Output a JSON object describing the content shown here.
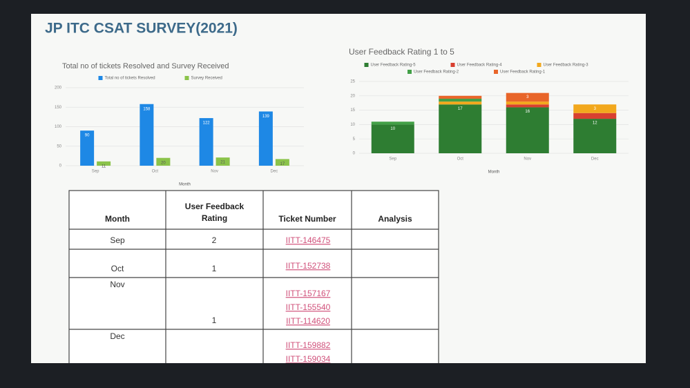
{
  "title": "JP ITC CSAT SURVEY(2021)",
  "chart_data": [
    {
      "type": "bar",
      "title": "Total no of tickets Resolved and Survey Received",
      "categories": [
        "Sep",
        "Oct",
        "Nov",
        "Dec"
      ],
      "series": [
        {
          "name": "Total no of tickets Resolved",
          "color": "#1e88e5",
          "values": [
            90,
            158,
            122,
            139
          ]
        },
        {
          "name": "Survey Received",
          "color": "#8bc34a",
          "values": [
            11,
            20,
            21,
            17
          ]
        }
      ],
      "xlabel": "Month",
      "ylim": [
        0,
        200
      ],
      "yticks": [
        0,
        50,
        100,
        150,
        200
      ],
      "grid": true
    },
    {
      "type": "stacked_bar",
      "title": "User Feedback Rating 1 to 5",
      "categories": [
        "Sep",
        "Oct",
        "Nov",
        "Dec"
      ],
      "series": [
        {
          "name": "User Feedback Rating-5",
          "color": "#2e7d32",
          "values": [
            10,
            17,
            16,
            12
          ]
        },
        {
          "name": "User Feedback Rating-4",
          "color": "#d84030",
          "values": [
            0,
            0,
            1,
            2
          ]
        },
        {
          "name": "User Feedback Rating-3",
          "color": "#f2a81d",
          "values": [
            0,
            1,
            1,
            3
          ]
        },
        {
          "name": "User Feedback Rating-2",
          "color": "#43a047",
          "values": [
            1,
            1,
            0,
            0
          ]
        },
        {
          "name": "User Feedback Rating-1",
          "color": "#e8652a",
          "values": [
            0,
            1,
            3,
            0
          ]
        }
      ],
      "xlabel": "Month",
      "ylim": [
        0,
        25
      ],
      "yticks": [
        0,
        5,
        10,
        15,
        20,
        25
      ],
      "grid": true
    }
  ],
  "table": {
    "headers": [
      "Month",
      "User Feedback Rating",
      "Ticket Number",
      "Analysis"
    ],
    "rows": [
      {
        "month": "Sep",
        "rating": "2",
        "tickets": [
          "IITT-146475"
        ]
      },
      {
        "month": "Oct",
        "rating": "1",
        "tickets": [
          "IITT-152738"
        ]
      },
      {
        "month": "Nov",
        "rating": "1",
        "tickets": [
          "IITT-157167",
          "IITT-155540",
          "IITT-114620"
        ]
      },
      {
        "month": "Dec",
        "tickets": [
          "IITT-159882",
          "IITT-159034"
        ]
      }
    ]
  }
}
